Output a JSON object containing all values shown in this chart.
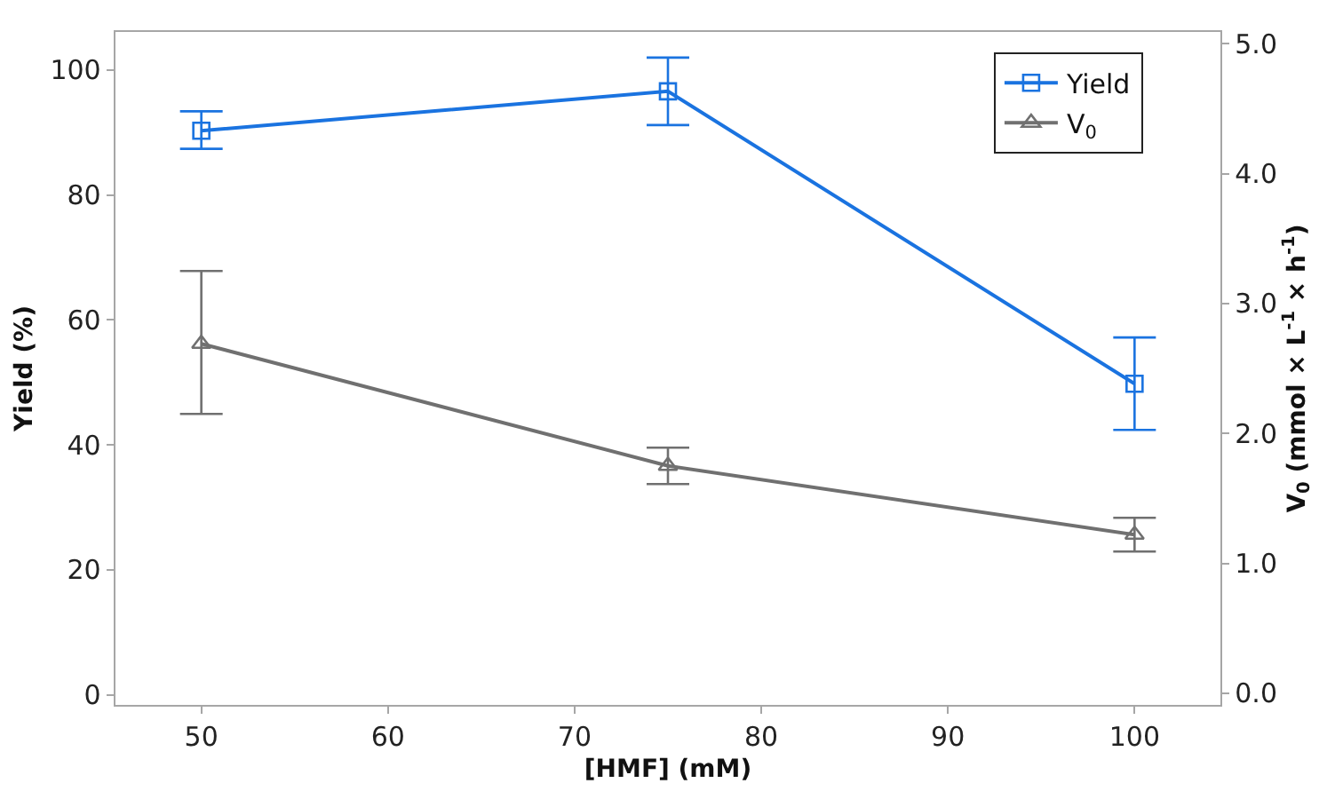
{
  "chart_data": {
    "type": "line",
    "xlabel": "[HMF] (mM)",
    "ylabel": "Yield (%)",
    "y2label": "V$_{0}$ (mmol × L$^{-1}$ × h$^{-1}$)",
    "x": [
      50,
      75,
      100
    ],
    "series": [
      {
        "name": "Yield",
        "color": "#1a73e0",
        "marker": "square",
        "values": [
          90.3,
          96.6,
          49.8
        ],
        "errors": [
          [
            87.4,
            93.4
          ],
          [
            91.2,
            102.0
          ],
          [
            42.4,
            57.2
          ]
        ]
      },
      {
        "name": "V$_{0}$",
        "color": "#707070",
        "marker": "triangle",
        "axis": "y2",
        "values": [
          2.69,
          1.75,
          1.22
        ],
        "errors": [
          [
            2.15,
            3.25
          ],
          [
            1.61,
            1.89
          ],
          [
            1.09,
            1.35
          ]
        ]
      }
    ],
    "xlim": [
      45.4,
      104.6
    ],
    "xticks": [
      50,
      60,
      70,
      80,
      90,
      100
    ],
    "ylim": [
      -1.6,
      106.1
    ],
    "yticks": [
      0,
      20,
      40,
      60,
      80,
      100
    ],
    "y2lim": [
      -0.09,
      5.09
    ],
    "y2ticks": [
      {
        "value": 0,
        "label": "0.0"
      },
      {
        "value": 1,
        "label": "1.0"
      },
      {
        "value": 2,
        "label": "2.0"
      },
      {
        "value": 3,
        "label": "3.0"
      },
      {
        "value": 4,
        "label": "4.0"
      },
      {
        "value": 5,
        "label": "5.0"
      }
    ],
    "grid": false,
    "legend": "top right",
    "line_style": "solid"
  }
}
